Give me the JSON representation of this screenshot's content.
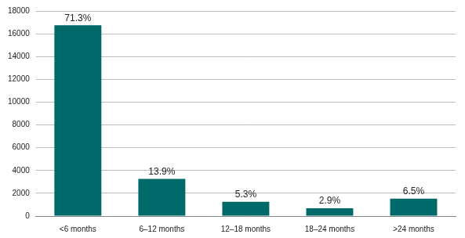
{
  "chart_data": {
    "type": "bar",
    "categories": [
      "<6 months",
      "6–12 months",
      "12–18 months",
      "18–24 months",
      ">24 months"
    ],
    "values": [
      16750,
      3270,
      1250,
      680,
      1530
    ],
    "annotations": [
      "71.3%",
      "13.9%",
      "5.3%",
      "2.9%",
      "6.5%"
    ],
    "color": "#006a6a",
    "ylim": [
      0,
      18000
    ],
    "yticks": [
      0,
      2000,
      4000,
      6000,
      8000,
      10000,
      12000,
      14000,
      16000,
      18000
    ],
    "grid": true
  }
}
